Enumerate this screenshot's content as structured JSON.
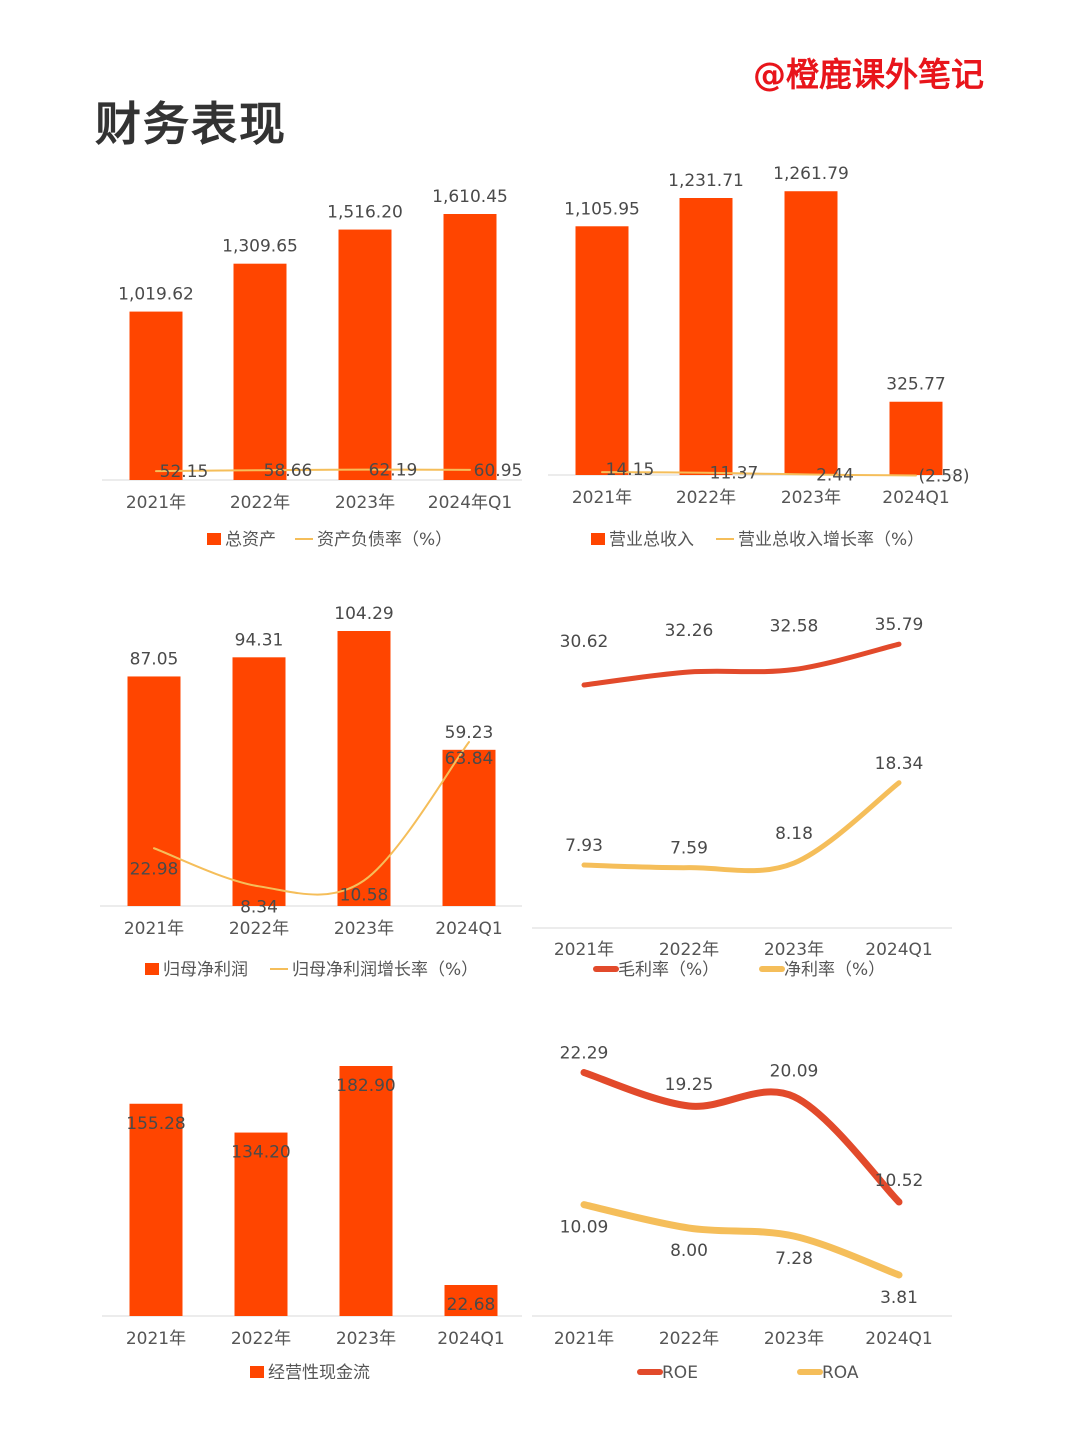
{
  "page": {
    "title": "财务表现",
    "watermark": "@橙鹿课外笔记"
  },
  "colors": {
    "bar": "#ff4500",
    "line_yellow": "#f5be5a",
    "line_red": "#e24a2b",
    "negative_label": "#e0262b"
  },
  "chart_data": [
    {
      "type": "bar",
      "categories": [
        "2021年",
        "2022年",
        "2023年",
        "2024年Q1"
      ],
      "series": [
        {
          "name": "总资产",
          "kind": "bar",
          "values": [
            1019.62,
            1309.65,
            1516.2,
            1610.45
          ],
          "labels": [
            "1,019.62",
            "1,309.65",
            "1,516.20",
            "1,610.45"
          ]
        },
        {
          "name": "资产负债率（%）",
          "kind": "line",
          "values": [
            52.15,
            58.66,
            62.19,
            60.95
          ],
          "labels": [
            "52.15",
            "58.66",
            "62.19",
            "60.95"
          ]
        }
      ]
    },
    {
      "type": "bar",
      "categories": [
        "2021年",
        "2022年",
        "2023年",
        "2024Q1"
      ],
      "series": [
        {
          "name": "营业总收入",
          "kind": "bar",
          "values": [
            1105.95,
            1231.71,
            1261.79,
            325.77
          ],
          "labels": [
            "1,105.95",
            "1,231.71",
            "1,261.79",
            "325.77"
          ]
        },
        {
          "name": "营业总收入增长率（%）",
          "kind": "line",
          "values": [
            14.15,
            11.37,
            2.44,
            -2.58
          ],
          "labels": [
            "14.15",
            "11.37",
            "2.44",
            "(2.58)"
          ]
        }
      ]
    },
    {
      "type": "bar",
      "categories": [
        "2021年",
        "2022年",
        "2023年",
        "2024Q1"
      ],
      "series": [
        {
          "name": "归母净利润",
          "kind": "bar",
          "values": [
            87.05,
            94.31,
            104.29,
            59.23
          ],
          "labels": [
            "87.05",
            "94.31",
            "104.29",
            "59.23"
          ]
        },
        {
          "name": "归母净利润增长率（%）",
          "kind": "line",
          "values": [
            22.98,
            8.34,
            10.58,
            63.84
          ],
          "labels": [
            "22.98",
            "8.34",
            "10.58",
            "63.84"
          ]
        }
      ]
    },
    {
      "type": "line",
      "categories": [
        "2021年",
        "2022年",
        "2023年",
        "2024Q1"
      ],
      "series": [
        {
          "name": "毛利率（%）",
          "kind": "line",
          "values": [
            30.62,
            32.26,
            32.58,
            35.79
          ],
          "labels": [
            "30.62",
            "32.26",
            "32.58",
            "35.79"
          ]
        },
        {
          "name": "净利率（%）",
          "kind": "line",
          "values": [
            7.93,
            7.59,
            8.18,
            18.34
          ],
          "labels": [
            "7.93",
            "7.59",
            "8.18",
            "18.34"
          ]
        }
      ]
    },
    {
      "type": "bar",
      "categories": [
        "2021年",
        "2022年",
        "2023年",
        "2024Q1"
      ],
      "series": [
        {
          "name": "经营性现金流",
          "kind": "bar",
          "values": [
            155.28,
            134.2,
            182.9,
            22.68
          ],
          "labels": [
            "155.28",
            "134.20",
            "182.90",
            "22.68"
          ]
        }
      ]
    },
    {
      "type": "line",
      "categories": [
        "2021年",
        "2022年",
        "2023年",
        "2024Q1"
      ],
      "series": [
        {
          "name": "ROE",
          "kind": "line",
          "values": [
            22.29,
            19.25,
            20.09,
            10.52
          ],
          "labels": [
            "22.29",
            "19.25",
            "20.09",
            "10.52"
          ]
        },
        {
          "name": "ROA",
          "kind": "line",
          "values": [
            10.09,
            8.0,
            7.28,
            3.81
          ],
          "labels": [
            "10.09",
            "8.00",
            "7.28",
            "3.81"
          ]
        }
      ]
    }
  ]
}
